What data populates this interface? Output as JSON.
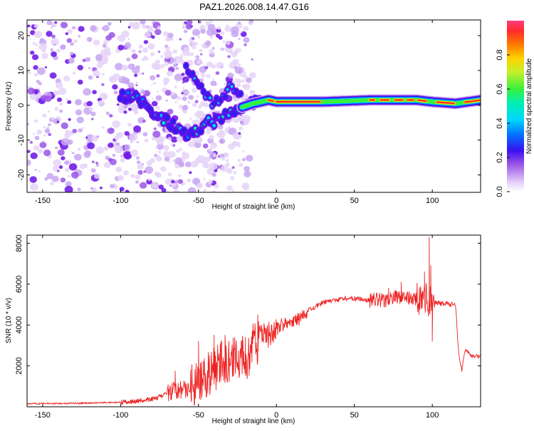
{
  "title": "PAZ1.2026.008.14.47.G16",
  "colors": {
    "snr_line": "#ee2222",
    "frame": "#000000",
    "colormap": [
      "#f4ecfb",
      "#e6d4f8",
      "#c8a6f2",
      "#9a55e8",
      "#6a10e6",
      "#2f1cf0",
      "#0078ff",
      "#00d6ff",
      "#00f0b0",
      "#38f03c",
      "#c6f02a",
      "#ffd200",
      "#ff7a00",
      "#ff2a2a",
      "#ff3d7f"
    ]
  },
  "chart_data": [
    {
      "type": "heatmap",
      "title": "PAZ1.2026.008.14.47.G16",
      "xlabel": "Height of straight line (km)",
      "ylabel": "Frequency (Hz)",
      "xlim": [
        -160,
        131
      ],
      "ylim": [
        -25,
        24.5
      ],
      "xticks": [
        -150,
        -100,
        -50,
        0,
        50,
        100
      ],
      "yticks": [
        -20,
        -10,
        0,
        10,
        20
      ],
      "colorbar": {
        "label": "Normalized spectral amplitude",
        "range": [
          0,
          1
        ],
        "ticks": [
          "0.0",
          "0.2",
          "0.4",
          "0.6",
          "0.8"
        ]
      },
      "ridge": [
        {
          "x": -100,
          "y": 3
        },
        {
          "x": -90,
          "y": 2
        },
        {
          "x": -85,
          "y": 0
        },
        {
          "x": -75,
          "y": -3
        },
        {
          "x": -65,
          "y": -6
        },
        {
          "x": -58,
          "y": -9
        },
        {
          "x": -45,
          "y": -5
        },
        {
          "x": -35,
          "y": -4
        },
        {
          "x": -25,
          "y": -1
        },
        {
          "x": -15,
          "y": 0.5
        },
        {
          "x": -5,
          "y": 1.5
        },
        {
          "x": 0,
          "y": 1
        },
        {
          "x": 30,
          "y": 1
        },
        {
          "x": 60,
          "y": 1.5
        },
        {
          "x": 90,
          "y": 1.5
        },
        {
          "x": 100,
          "y": 1
        },
        {
          "x": 115,
          "y": 0.5
        },
        {
          "x": 131,
          "y": 1.5
        }
      ],
      "secondary_ridge": [
        {
          "x": -58,
          "y": 11
        },
        {
          "x": -48,
          "y": 5
        },
        {
          "x": -40,
          "y": 0
        },
        {
          "x": -30,
          "y": 5
        },
        {
          "x": -22,
          "y": 3
        }
      ]
    },
    {
      "type": "line",
      "series_name": "SNR",
      "xlabel": "Height of straight line (km)",
      "ylabel": "SNR (10 * v/v)",
      "xlim": [
        -160,
        131
      ],
      "ylim": [
        0,
        8400
      ],
      "xticks": [
        -150,
        -100,
        -50,
        0,
        50,
        100
      ],
      "yticks": [
        2000,
        4000,
        6000,
        8000
      ],
      "x": [
        -160,
        -140,
        -120,
        -100,
        -90,
        -80,
        -75,
        -70,
        -65,
        -60,
        -55,
        -50,
        -45,
        -40,
        -35,
        -30,
        -25,
        -20,
        -18,
        -15,
        -10,
        -5,
        0,
        5,
        10,
        15,
        20,
        25,
        30,
        35,
        40,
        45,
        50,
        55,
        60,
        65,
        70,
        75,
        80,
        85,
        90,
        95,
        98,
        100,
        102,
        105,
        110,
        115,
        117,
        119,
        121,
        125,
        131
      ],
      "values": [
        150,
        160,
        180,
        220,
        280,
        380,
        480,
        650,
        800,
        850,
        900,
        1300,
        1500,
        1800,
        2200,
        2300,
        2500,
        2600,
        2300,
        3000,
        3300,
        3600,
        3800,
        4100,
        4250,
        4300,
        4700,
        4900,
        5100,
        5200,
        5250,
        5300,
        5300,
        5250,
        5200,
        5250,
        5200,
        5350,
        5300,
        5350,
        5300,
        5300,
        5200,
        5100,
        5100,
        5050,
        5050,
        4950,
        2500,
        1800,
        2800,
        2500,
        2450
      ],
      "spikes": [
        {
          "x": -65,
          "y": 1750
        },
        {
          "x": -50,
          "y": 3200
        },
        {
          "x": -40,
          "y": 3500
        },
        {
          "x": -33,
          "y": 3500
        },
        {
          "x": -20,
          "y": 3400
        },
        {
          "x": -12,
          "y": 4500
        },
        {
          "x": 72,
          "y": 5800
        },
        {
          "x": 80,
          "y": 6100
        },
        {
          "x": 95,
          "y": 6600
        },
        {
          "x": 98,
          "y": 8300
        },
        {
          "x": 99,
          "y": 6900
        },
        {
          "x": 100,
          "y": 3200
        }
      ]
    }
  ]
}
